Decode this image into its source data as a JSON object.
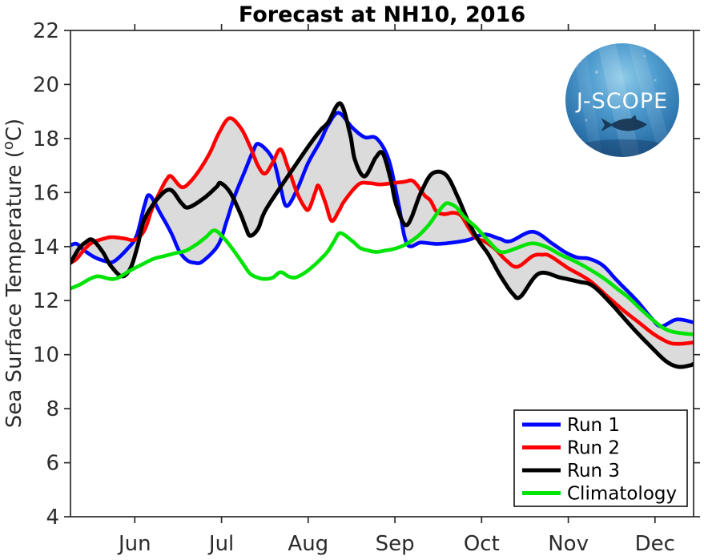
{
  "figure": {
    "title": "Forecast at NH10, 2016",
    "logo_text": "J-SCOPE"
  },
  "chart_data": {
    "type": "line",
    "title": "Forecast at NH10, 2016",
    "xlabel": "",
    "ylabel": "Sea Surface Temperature (°C)",
    "ylabel_parts": {
      "pre": "Sea Surface Temperature (",
      "sup": "o",
      "post": "C)"
    },
    "x_axis": {
      "unit": "month of 2016 (decimal month, 6 = Jun 1)",
      "range": [
        5.258,
        12.445
      ],
      "tick_values": [
        6,
        7,
        8,
        9,
        10,
        11,
        12
      ],
      "tick_labels": [
        "Jun",
        "Jul",
        "Aug",
        "Sep",
        "Oct",
        "Nov",
        "Dec"
      ]
    },
    "y_axis": {
      "range": [
        4,
        22
      ],
      "tick_values": [
        4,
        6,
        8,
        10,
        12,
        14,
        16,
        18,
        20,
        22
      ],
      "tick_labels": [
        "4",
        "6",
        "8",
        "10",
        "12",
        "14",
        "16",
        "18",
        "20",
        "22"
      ]
    },
    "grid": false,
    "legend": {
      "position": "lower right",
      "entries": [
        "Run 1",
        "Run 2",
        "Run 3",
        "Climatology"
      ]
    },
    "envelope": {
      "description": "gray band spanning min-max of Run 1, Run 2, Run 3",
      "color": "#dbdbdb"
    },
    "axis_color": "#2b2b2b",
    "series": [
      {
        "name": "Run 1",
        "color": "#0008ff",
        "width": 4.6,
        "in_envelope": true,
        "points": [
          [
            5.26,
            14.05
          ],
          [
            5.33,
            14.1
          ],
          [
            5.42,
            13.85
          ],
          [
            5.54,
            13.6
          ],
          [
            5.67,
            13.45
          ],
          [
            5.76,
            13.45
          ],
          [
            5.91,
            13.9
          ],
          [
            6.02,
            14.4
          ],
          [
            6.11,
            15.5
          ],
          [
            6.17,
            15.9
          ],
          [
            6.3,
            15.2
          ],
          [
            6.42,
            14.5
          ],
          [
            6.51,
            13.85
          ],
          [
            6.6,
            13.5
          ],
          [
            6.69,
            13.4
          ],
          [
            6.78,
            13.45
          ],
          [
            6.96,
            14.05
          ],
          [
            7.06,
            14.95
          ],
          [
            7.15,
            15.85
          ],
          [
            7.27,
            16.8
          ],
          [
            7.36,
            17.5
          ],
          [
            7.43,
            17.8
          ],
          [
            7.59,
            17.25
          ],
          [
            7.68,
            16.2
          ],
          [
            7.75,
            15.5
          ],
          [
            7.87,
            16.1
          ],
          [
            8.0,
            17.1
          ],
          [
            8.14,
            17.9
          ],
          [
            8.23,
            18.5
          ],
          [
            8.35,
            18.95
          ],
          [
            8.51,
            18.4
          ],
          [
            8.65,
            18.05
          ],
          [
            8.79,
            18.0
          ],
          [
            8.93,
            17.2
          ],
          [
            9.04,
            15.6
          ],
          [
            9.14,
            14.1
          ],
          [
            9.3,
            14.15
          ],
          [
            9.48,
            14.1
          ],
          [
            9.67,
            14.15
          ],
          [
            9.85,
            14.25
          ],
          [
            10.03,
            14.45
          ],
          [
            10.2,
            14.3
          ],
          [
            10.33,
            14.2
          ],
          [
            10.59,
            14.55
          ],
          [
            10.82,
            14.1
          ],
          [
            10.96,
            13.8
          ],
          [
            11.1,
            13.6
          ],
          [
            11.24,
            13.55
          ],
          [
            11.4,
            13.3
          ],
          [
            11.56,
            12.75
          ],
          [
            11.79,
            12.0
          ],
          [
            11.96,
            11.35
          ],
          [
            12.07,
            11.05
          ],
          [
            12.25,
            11.3
          ],
          [
            12.44,
            11.2
          ]
        ]
      },
      {
        "name": "Run 2",
        "color": "#ff0000",
        "width": 4.6,
        "in_envelope": true,
        "points": [
          [
            5.26,
            13.4
          ],
          [
            5.33,
            13.55
          ],
          [
            5.42,
            13.9
          ],
          [
            5.51,
            14.15
          ],
          [
            5.65,
            14.3
          ],
          [
            5.74,
            14.35
          ],
          [
            5.88,
            14.3
          ],
          [
            6.0,
            14.25
          ],
          [
            6.11,
            14.6
          ],
          [
            6.2,
            15.4
          ],
          [
            6.3,
            16.1
          ],
          [
            6.37,
            16.5
          ],
          [
            6.42,
            16.6
          ],
          [
            6.54,
            16.2
          ],
          [
            6.64,
            16.4
          ],
          [
            6.76,
            16.9
          ],
          [
            6.87,
            17.5
          ],
          [
            6.97,
            18.2
          ],
          [
            7.09,
            18.75
          ],
          [
            7.22,
            18.4
          ],
          [
            7.33,
            17.7
          ],
          [
            7.42,
            17.0
          ],
          [
            7.5,
            16.7
          ],
          [
            7.59,
            17.1
          ],
          [
            7.68,
            17.6
          ],
          [
            7.77,
            16.9
          ],
          [
            7.87,
            16.0
          ],
          [
            7.96,
            15.45
          ],
          [
            8.01,
            15.4
          ],
          [
            8.08,
            16.0
          ],
          [
            8.12,
            16.25
          ],
          [
            8.2,
            15.6
          ],
          [
            8.27,
            14.95
          ],
          [
            8.35,
            15.3
          ],
          [
            8.42,
            15.7
          ],
          [
            8.58,
            16.3
          ],
          [
            8.7,
            16.35
          ],
          [
            8.83,
            16.3
          ],
          [
            8.97,
            16.35
          ],
          [
            9.11,
            16.4
          ],
          [
            9.19,
            16.45
          ],
          [
            9.25,
            16.3
          ],
          [
            9.34,
            15.9
          ],
          [
            9.41,
            15.7
          ],
          [
            9.48,
            15.3
          ],
          [
            9.57,
            15.2
          ],
          [
            9.67,
            15.25
          ],
          [
            9.76,
            15.15
          ],
          [
            9.85,
            14.7
          ],
          [
            9.94,
            14.3
          ],
          [
            10.03,
            14.2
          ],
          [
            10.16,
            13.9
          ],
          [
            10.28,
            13.5
          ],
          [
            10.41,
            13.25
          ],
          [
            10.59,
            13.65
          ],
          [
            10.7,
            13.7
          ],
          [
            10.79,
            13.65
          ],
          [
            11.0,
            13.2
          ],
          [
            11.24,
            12.75
          ],
          [
            11.47,
            12.1
          ],
          [
            11.65,
            11.6
          ],
          [
            11.81,
            11.2
          ],
          [
            11.99,
            10.75
          ],
          [
            12.16,
            10.45
          ],
          [
            12.28,
            10.4
          ],
          [
            12.44,
            10.45
          ]
        ]
      },
      {
        "name": "Run 3",
        "color": "#000000",
        "width": 5.0,
        "in_envelope": true,
        "points": [
          [
            5.26,
            13.4
          ],
          [
            5.35,
            13.9
          ],
          [
            5.43,
            14.15
          ],
          [
            5.51,
            14.25
          ],
          [
            5.63,
            13.8
          ],
          [
            5.72,
            13.3
          ],
          [
            5.85,
            12.9
          ],
          [
            5.95,
            13.2
          ],
          [
            6.03,
            14.0
          ],
          [
            6.11,
            15.0
          ],
          [
            6.27,
            15.8
          ],
          [
            6.41,
            16.1
          ],
          [
            6.54,
            15.6
          ],
          [
            6.62,
            15.45
          ],
          [
            6.8,
            15.8
          ],
          [
            6.94,
            16.2
          ],
          [
            6.99,
            16.35
          ],
          [
            7.1,
            16.0
          ],
          [
            7.22,
            15.2
          ],
          [
            7.28,
            14.7
          ],
          [
            7.33,
            14.4
          ],
          [
            7.42,
            14.65
          ],
          [
            7.5,
            15.3
          ],
          [
            7.68,
            16.2
          ],
          [
            7.85,
            17.0
          ],
          [
            8.0,
            17.7
          ],
          [
            8.14,
            18.3
          ],
          [
            8.23,
            18.6
          ],
          [
            8.37,
            19.3
          ],
          [
            8.48,
            18.2
          ],
          [
            8.54,
            17.2
          ],
          [
            8.65,
            16.6
          ],
          [
            8.78,
            17.3
          ],
          [
            8.86,
            17.45
          ],
          [
            8.95,
            16.5
          ],
          [
            9.02,
            15.5
          ],
          [
            9.14,
            14.8
          ],
          [
            9.3,
            16.0
          ],
          [
            9.43,
            16.7
          ],
          [
            9.59,
            16.65
          ],
          [
            9.73,
            15.8
          ],
          [
            9.85,
            14.9
          ],
          [
            9.97,
            14.2
          ],
          [
            10.08,
            13.7
          ],
          [
            10.22,
            12.9
          ],
          [
            10.36,
            12.25
          ],
          [
            10.45,
            12.15
          ],
          [
            10.66,
            13.0
          ],
          [
            10.91,
            12.85
          ],
          [
            11.12,
            12.7
          ],
          [
            11.28,
            12.55
          ],
          [
            11.49,
            11.9
          ],
          [
            11.74,
            11.0
          ],
          [
            11.95,
            10.3
          ],
          [
            12.13,
            9.75
          ],
          [
            12.27,
            9.55
          ],
          [
            12.4,
            9.6
          ],
          [
            12.44,
            9.65
          ]
        ]
      },
      {
        "name": "Climatology",
        "color": "#00e404",
        "width": 4.6,
        "in_envelope": false,
        "points": [
          [
            5.26,
            12.45
          ],
          [
            5.37,
            12.6
          ],
          [
            5.48,
            12.8
          ],
          [
            5.58,
            12.9
          ],
          [
            5.72,
            12.8
          ],
          [
            5.81,
            12.85
          ],
          [
            5.94,
            13.1
          ],
          [
            6.09,
            13.35
          ],
          [
            6.22,
            13.55
          ],
          [
            6.34,
            13.65
          ],
          [
            6.46,
            13.75
          ],
          [
            6.59,
            13.85
          ],
          [
            6.72,
            14.1
          ],
          [
            6.82,
            14.35
          ],
          [
            6.92,
            14.6
          ],
          [
            7.03,
            14.3
          ],
          [
            7.13,
            13.9
          ],
          [
            7.24,
            13.4
          ],
          [
            7.33,
            13.0
          ],
          [
            7.42,
            12.85
          ],
          [
            7.5,
            12.8
          ],
          [
            7.59,
            12.85
          ],
          [
            7.68,
            13.05
          ],
          [
            7.77,
            12.9
          ],
          [
            7.83,
            12.85
          ],
          [
            7.89,
            12.9
          ],
          [
            7.99,
            13.1
          ],
          [
            8.1,
            13.4
          ],
          [
            8.22,
            13.8
          ],
          [
            8.3,
            14.2
          ],
          [
            8.37,
            14.5
          ],
          [
            8.51,
            14.2
          ],
          [
            8.6,
            13.95
          ],
          [
            8.7,
            13.85
          ],
          [
            8.79,
            13.8
          ],
          [
            8.88,
            13.85
          ],
          [
            8.97,
            13.9
          ],
          [
            9.07,
            14.0
          ],
          [
            9.16,
            14.15
          ],
          [
            9.27,
            14.4
          ],
          [
            9.39,
            14.8
          ],
          [
            9.48,
            15.2
          ],
          [
            9.57,
            15.55
          ],
          [
            9.62,
            15.6
          ],
          [
            9.71,
            15.45
          ],
          [
            9.8,
            15.1
          ],
          [
            9.94,
            14.7
          ],
          [
            10.08,
            14.2
          ],
          [
            10.19,
            13.85
          ],
          [
            10.27,
            13.8
          ],
          [
            10.41,
            13.95
          ],
          [
            10.54,
            14.1
          ],
          [
            10.64,
            14.1
          ],
          [
            10.77,
            13.95
          ],
          [
            10.91,
            13.7
          ],
          [
            11.08,
            13.45
          ],
          [
            11.25,
            13.15
          ],
          [
            11.42,
            12.8
          ],
          [
            11.56,
            12.45
          ],
          [
            11.7,
            12.1
          ],
          [
            11.83,
            11.7
          ],
          [
            11.97,
            11.3
          ],
          [
            12.09,
            11.0
          ],
          [
            12.2,
            10.85
          ],
          [
            12.34,
            10.78
          ],
          [
            12.44,
            10.75
          ]
        ]
      }
    ]
  }
}
